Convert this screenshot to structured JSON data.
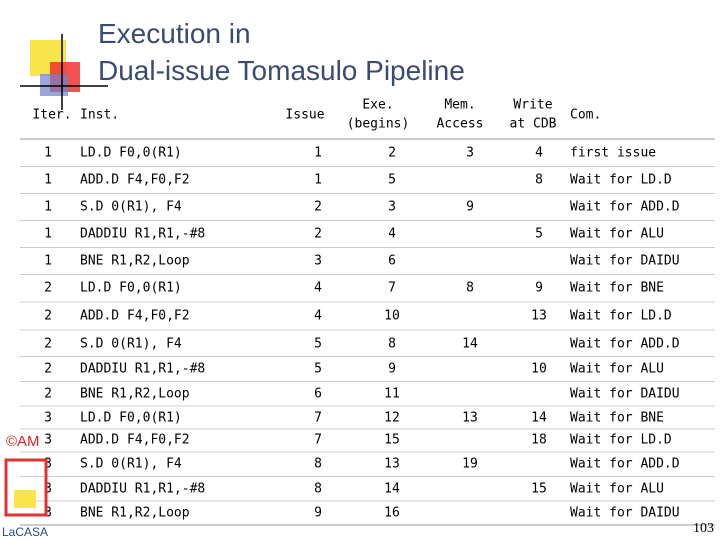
{
  "title": [
    "Execution in",
    "Dual-issue Tomasulo Pipeline"
  ],
  "table": {
    "header": [
      [
        "Iter."
      ],
      [
        "Inst."
      ],
      [
        "Issue"
      ],
      [
        "Exe.",
        "(begins)"
      ],
      [
        "Mem.",
        "Access"
      ],
      [
        "Write",
        "at CDB"
      ],
      [
        "Com."
      ]
    ],
    "rows": [
      [
        1,
        "LD.D F0,0(R1)",
        1,
        2,
        3,
        4,
        "first issue"
      ],
      [
        1,
        "ADD.D F4,F0,F2",
        1,
        5,
        null,
        8,
        "Wait for LD.D"
      ],
      [
        1,
        "S.D 0(R1), F4",
        2,
        3,
        9,
        null,
        "Wait for ADD.D"
      ],
      [
        1,
        "DADDIU R1,R1,-#8",
        2,
        4,
        null,
        5,
        "Wait for ALU"
      ],
      [
        1,
        "BNE R1,R2,Loop",
        3,
        6,
        null,
        null,
        "Wait for DAIDU"
      ],
      [
        2,
        "LD.D F0,0(R1)",
        4,
        7,
        8,
        9,
        "Wait for BNE"
      ],
      [
        2,
        "ADD.D F4,F0,F2",
        4,
        10,
        null,
        13,
        "Wait for LD.D"
      ],
      [
        2,
        "S.D 0(R1), F4",
        5,
        8,
        14,
        null,
        "Wait for ADD.D"
      ],
      [
        2,
        "DADDIU R1,R1,-#8",
        5,
        9,
        null,
        10,
        "Wait for ALU"
      ],
      [
        2,
        "BNE R1,R2,Loop",
        6,
        11,
        null,
        null,
        "Wait for DAIDU"
      ],
      [
        3,
        "LD.D F0,0(R1)",
        7,
        12,
        13,
        14,
        "Wait for BNE"
      ],
      [
        3,
        "ADD.D F4,F0,F2",
        7,
        15,
        null,
        18,
        "Wait for LD.D"
      ],
      [
        3,
        "S.D 0(R1), F4",
        8,
        13,
        19,
        null,
        "Wait for ADD.D"
      ],
      [
        3,
        "DADDIU R1,R1,-#8",
        8,
        14,
        null,
        15,
        "Wait for ALU"
      ],
      [
        3,
        "BNE R1,R2,Loop",
        9,
        16,
        null,
        null,
        "Wait for DAIDU"
      ]
    ]
  },
  "logo": {
    "copyright": "©AM",
    "name": "LaCASA"
  },
  "page_number": "103"
}
